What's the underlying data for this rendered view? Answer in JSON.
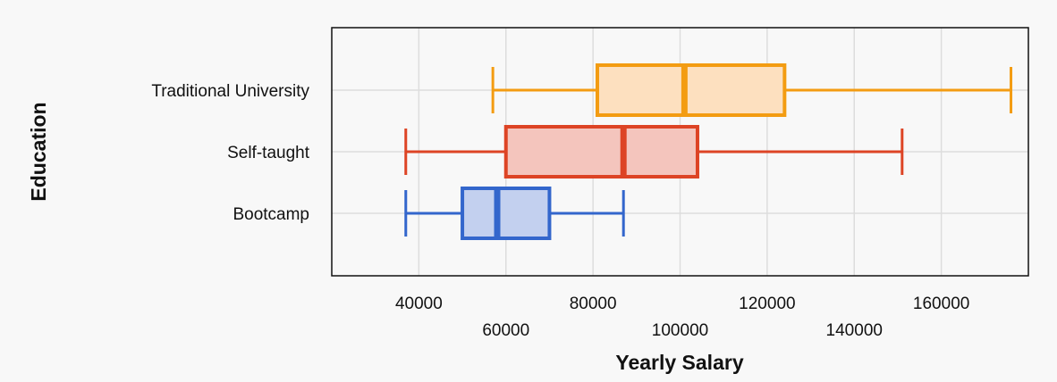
{
  "chart_data": {
    "type": "boxplot",
    "orientation": "horizontal",
    "title": "",
    "xlabel": "Yearly Salary",
    "ylabel": "Education",
    "xlim": [
      20000,
      180000
    ],
    "x_ticks": [
      40000,
      60000,
      80000,
      100000,
      120000,
      140000,
      160000
    ],
    "x_tick_labels": [
      "40000",
      "60000",
      "80000",
      "100000",
      "120000",
      "140000",
      "160000"
    ],
    "grid": true,
    "categories": [
      "Traditional University",
      "Self-taught",
      "Bootcamp"
    ],
    "series": [
      {
        "category": "Traditional University",
        "min": 57000,
        "q1": 81000,
        "median": 101000,
        "q3": 124000,
        "max": 176000,
        "color": "#f39c12",
        "fill": "#fde0bf"
      },
      {
        "category": "Self-taught",
        "min": 37000,
        "q1": 60000,
        "median": 87000,
        "q3": 104000,
        "max": 151000,
        "color": "#dd4425",
        "fill": "#f4c5bd"
      },
      {
        "category": "Bootcamp",
        "min": 37000,
        "q1": 50000,
        "median": 58000,
        "q3": 70000,
        "max": 87000,
        "color": "#3366cc",
        "fill": "#c3d0ef"
      }
    ]
  }
}
